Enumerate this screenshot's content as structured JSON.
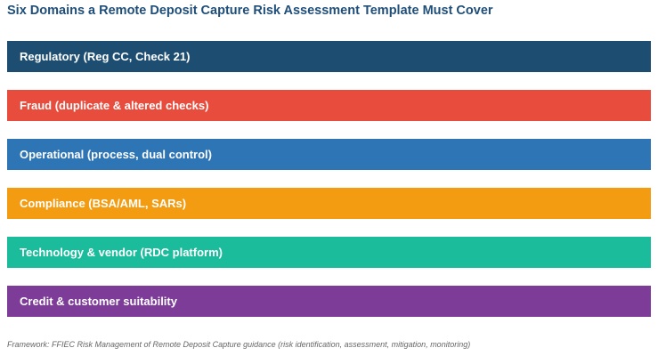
{
  "title": "Six Domains a Remote Deposit Capture Risk Assessment Template Must Cover",
  "domains": [
    {
      "label": "Regulatory (Reg CC, Check 21)",
      "color": "#1d4e72"
    },
    {
      "label": "Fraud (duplicate & altered checks)",
      "color": "#e84c3d"
    },
    {
      "label": "Operational (process, dual control)",
      "color": "#2e75b6"
    },
    {
      "label": "Compliance (BSA/AML, SARs)",
      "color": "#f39c12"
    },
    {
      "label": "Technology & vendor (RDC platform)",
      "color": "#1abc9c"
    },
    {
      "label": "Credit & customer suitability",
      "color": "#7d3c98"
    }
  ],
  "footnote": "Framework: FFIEC Risk Management of Remote Deposit Capture guidance (risk identification, assessment, mitigation, monitoring)"
}
